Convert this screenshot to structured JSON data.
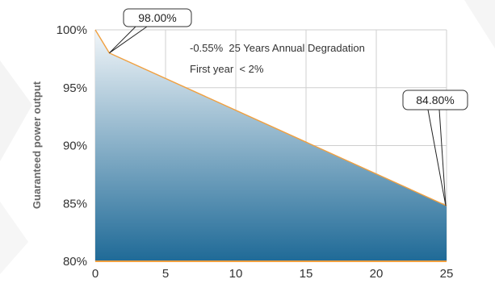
{
  "chart_data": {
    "type": "area",
    "ylabel": "Guaranteed power output",
    "xlabel": "",
    "x_ticks": [
      "0",
      "5",
      "10",
      "15",
      "20",
      "25"
    ],
    "y_ticks": [
      "80%",
      "85%",
      "90%",
      "95%",
      "100%"
    ],
    "xlim": [
      0,
      25
    ],
    "ylim": [
      80,
      100
    ],
    "grid": true,
    "points": [
      {
        "x": 0,
        "y": 100
      },
      {
        "x": 1,
        "y": 98.0
      },
      {
        "x": 25,
        "y": 84.8
      }
    ],
    "callouts": [
      {
        "text": "98.00%",
        "x": 1,
        "y": 98.0
      },
      {
        "text": "84.80%",
        "x": 25,
        "y": 84.8
      }
    ],
    "annotations": [
      "-0.55%  25 Years Annual Degradation",
      "First year  < 2%"
    ],
    "colors": {
      "fill_top": "#f2f6f9",
      "fill_bottom": "#1f6a97",
      "line": "#f0a040",
      "grid": "#cfcfcf",
      "axis_text": "#333333"
    }
  }
}
